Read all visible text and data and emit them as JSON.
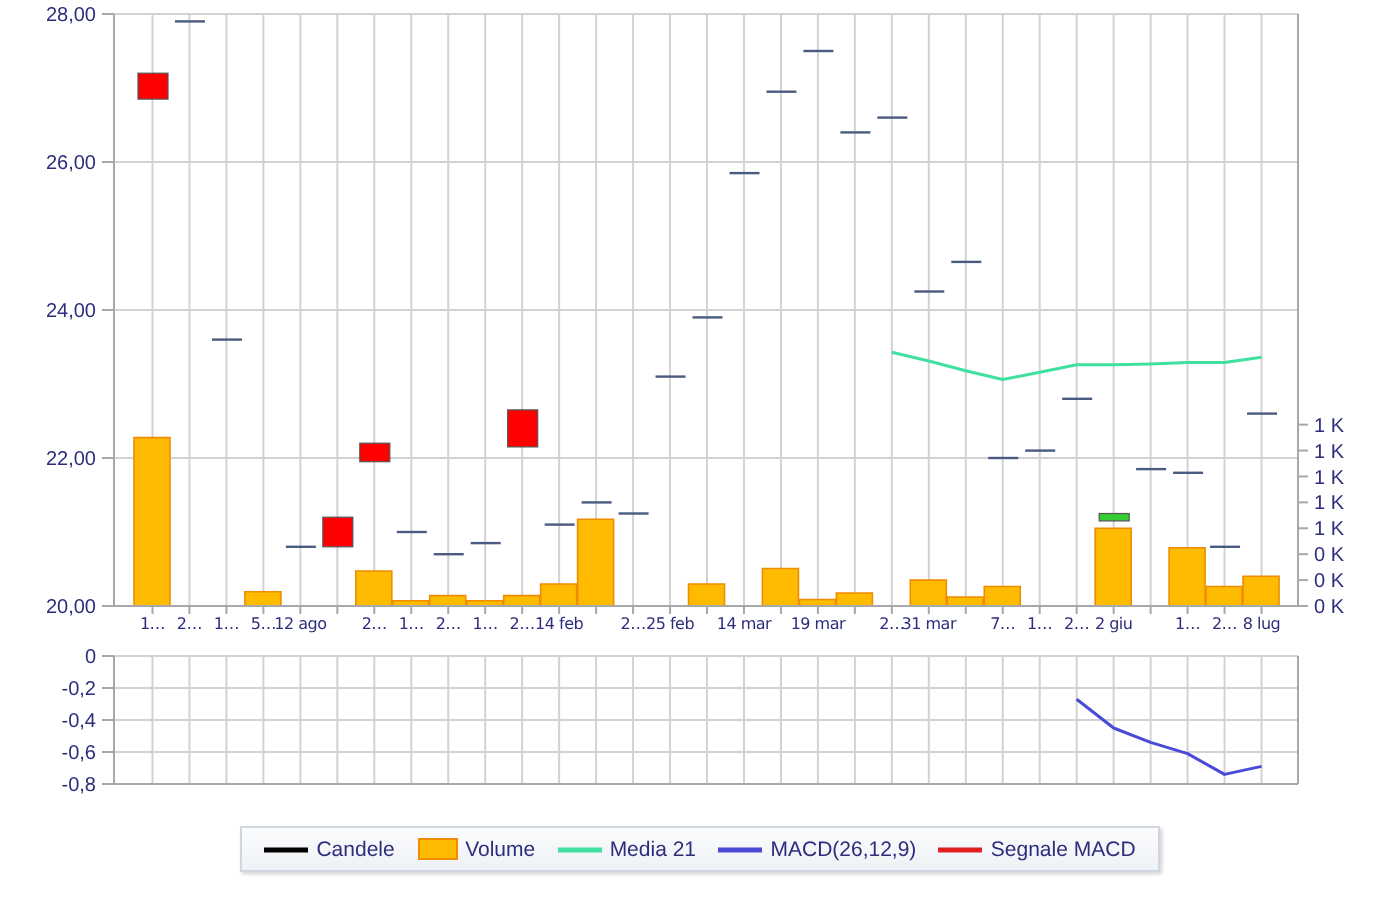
{
  "chart_data": [
    {
      "type": "candlestick",
      "categories": [
        "1…",
        "2…",
        "1…",
        "5…",
        "12 ago",
        null,
        "2…",
        "1…",
        "2…",
        "1…",
        "2…",
        "14 feb",
        null,
        "2…",
        "25 feb",
        null,
        "14 mar",
        null,
        "19 mar",
        null,
        "2…",
        "31 mar",
        null,
        "7…",
        "1…",
        "2…",
        "2 giu",
        null,
        "1…",
        "2…",
        "8 lug"
      ],
      "series": [
        {
          "name": "Candele",
          "type": "candlestick",
          "color": "#000000",
          "colors": [
            "#ff0000",
            "#4a5a80",
            "#4a5a80",
            null,
            "#4a5a80",
            "#ff0000",
            "#ff0000",
            "#4a5a80",
            "#4a5a80",
            "#4a5a80",
            "#ff0000",
            "#4a5a80",
            "#4a5a80",
            "#4a5a80",
            "#4a5a80",
            "#4a5a80",
            "#4a5a80",
            "#4a5a80",
            "#4a5a80",
            "#4a5a80",
            "#4a5a80",
            "#4a5a80",
            "#4a5a80",
            "#4a5a80",
            "#4a5a80",
            "#4a5a80",
            "#33cc33",
            "#4a5a80",
            "#4a5a80",
            "#4a5a80",
            "#4a5a80"
          ],
          "ohlc": [
            [
              27.2,
              27.2,
              26.85,
              26.85
            ],
            [
              27.9,
              27.9,
              27.9,
              27.9
            ],
            [
              23.6,
              23.6,
              23.6,
              23.6
            ],
            null,
            [
              20.8,
              20.8,
              20.8,
              20.8
            ],
            [
              21.2,
              21.2,
              20.8,
              20.8
            ],
            [
              22.2,
              22.2,
              21.95,
              21.95
            ],
            [
              21.0,
              21.0,
              21.0,
              21.0
            ],
            [
              20.7,
              20.7,
              20.7,
              20.7
            ],
            [
              20.85,
              20.85,
              20.85,
              20.85
            ],
            [
              22.65,
              22.65,
              22.15,
              22.15
            ],
            [
              21.1,
              21.1,
              21.1,
              21.1
            ],
            [
              21.4,
              21.4,
              21.4,
              21.4
            ],
            [
              21.25,
              21.25,
              21.25,
              21.25
            ],
            [
              23.1,
              23.1,
              23.1,
              23.1
            ],
            [
              23.9,
              23.9,
              23.9,
              23.9
            ],
            [
              25.85,
              25.85,
              25.85,
              25.85
            ],
            [
              26.95,
              26.95,
              26.95,
              26.95
            ],
            [
              27.5,
              27.5,
              27.5,
              27.5
            ],
            [
              26.4,
              26.4,
              26.4,
              26.4
            ],
            [
              26.6,
              26.6,
              26.6,
              26.6
            ],
            [
              24.25,
              24.25,
              24.25,
              24.25
            ],
            [
              24.65,
              24.65,
              24.65,
              24.65
            ],
            [
              22.0,
              22.0,
              22.0,
              22.0
            ],
            [
              22.1,
              22.1,
              22.1,
              22.1
            ],
            [
              22.8,
              22.8,
              22.8,
              22.8
            ],
            [
              21.15,
              21.25,
              21.15,
              21.25
            ],
            [
              21.85,
              21.85,
              21.85,
              21.85
            ],
            [
              21.8,
              21.8,
              21.8,
              21.8
            ],
            [
              20.8,
              20.8,
              20.8,
              20.8
            ],
            [
              22.6,
              22.6,
              22.6,
              22.6
            ]
          ]
        },
        {
          "name": "Volume",
          "type": "bar",
          "axis": "y2",
          "color": "#ffbb00",
          "values": [
            1300,
            0,
            0,
            110,
            0,
            0,
            270,
            40,
            80,
            40,
            80,
            170,
            670,
            0,
            0,
            170,
            0,
            290,
            50,
            100,
            0,
            200,
            70,
            150,
            0,
            0,
            600,
            0,
            450,
            150,
            230
          ]
        },
        {
          "name": "Media 21",
          "type": "line",
          "color": "#40e0a0",
          "values": [
            null,
            null,
            null,
            null,
            null,
            null,
            null,
            null,
            null,
            null,
            null,
            null,
            null,
            null,
            null,
            null,
            null,
            null,
            null,
            null,
            23.43,
            23.31,
            23.18,
            23.06,
            23.16,
            23.26,
            23.26,
            23.27,
            23.29,
            23.29,
            23.36
          ]
        }
      ],
      "ylim": [
        20,
        28
      ],
      "yticks": [
        {
          "value": 20,
          "label": "20,00"
        },
        {
          "value": 22,
          "label": "22,00"
        },
        {
          "value": 24,
          "label": "24,00"
        },
        {
          "value": 26,
          "label": "26,00"
        },
        {
          "value": 28,
          "label": "28,00"
        }
      ],
      "y2lim": [
        0,
        4570
      ],
      "y2ticks": [
        {
          "value": 0,
          "label": "0 K"
        },
        {
          "value": 200,
          "label": "0 K"
        },
        {
          "value": 400,
          "label": "0 K"
        },
        {
          "value": 600,
          "label": "1 K"
        },
        {
          "value": 800,
          "label": "1 K"
        },
        {
          "value": 1000,
          "label": "1 K"
        },
        {
          "value": 1200,
          "label": "1 K"
        },
        {
          "value": 1400,
          "label": "1 K"
        }
      ],
      "grid": true,
      "legend": "bottom"
    },
    {
      "type": "line",
      "categories": [
        null,
        null,
        null,
        null,
        null,
        null,
        null,
        null,
        null,
        null,
        null,
        null,
        null,
        null,
        null,
        null,
        null,
        null,
        null,
        null,
        null,
        null,
        null,
        null,
        null,
        null,
        null,
        null,
        null,
        null,
        null
      ],
      "series": [
        {
          "name": "MACD(26,12,9)",
          "color": "#4a4ad8",
          "values": [
            null,
            null,
            null,
            null,
            null,
            null,
            null,
            null,
            null,
            null,
            null,
            null,
            null,
            null,
            null,
            null,
            null,
            null,
            null,
            null,
            null,
            null,
            null,
            null,
            null,
            -0.27,
            -0.45,
            -0.54,
            -0.61,
            -0.74,
            -0.69
          ]
        },
        {
          "name": "Segnale MACD",
          "color": "#e02020",
          "values": [
            null,
            null,
            null,
            null,
            null,
            null,
            null,
            null,
            null,
            null,
            null,
            null,
            null,
            null,
            null,
            null,
            null,
            null,
            null,
            null,
            null,
            null,
            null,
            null,
            null,
            null,
            null,
            null,
            null,
            null,
            null
          ]
        }
      ],
      "ylim": [
        -0.8,
        0
      ],
      "yticks": [
        {
          "value": -0.8,
          "label": "-0,8"
        },
        {
          "value": -0.6,
          "label": "-0,6"
        },
        {
          "value": -0.4,
          "label": "-0,4"
        },
        {
          "value": -0.2,
          "label": "-0,2"
        },
        0
      ],
      "grid": true,
      "legend": "bottom",
      "tick_labels": "y"
    }
  ]
}
